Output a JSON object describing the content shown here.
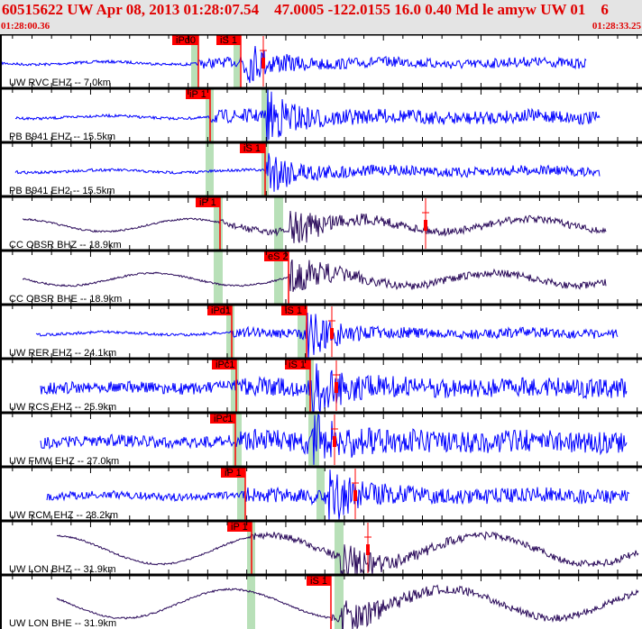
{
  "header": {
    "title": "60515622 UW Apr 08, 2013 01:28:07.54    47.0005 -122.0155 16.0 0.40 Md le amyw UW 01    6",
    "time_start": "01:28:00.36",
    "time_end": "01:28:33.25"
  },
  "colors": {
    "header_text": "#e00000",
    "header_bg": "#e4e4e4",
    "short_period": "#0000ff",
    "broadband": "#2a0a5a",
    "pick": "#ff0000",
    "window": "#b8e0b8"
  },
  "traces": [
    {
      "label": "UW RVC EHZ -- 7.0km",
      "kind": "short_period",
      "picks": [
        "iPd0",
        "iS 1"
      ]
    },
    {
      "label": "PB B941 EHZ -- 15.5km",
      "kind": "short_period",
      "picks": [
        "iP 1"
      ]
    },
    {
      "label": "PB B941 EH2 -- 15.5km",
      "kind": "short_period",
      "picks": [
        "iS 1"
      ]
    },
    {
      "label": "CC OBSR BHZ -- 18.9km",
      "kind": "broadband",
      "picks": [
        "iP 1"
      ]
    },
    {
      "label": "CC OBSR BHE -- 18.9km",
      "kind": "broadband",
      "picks": [
        "eS 2"
      ]
    },
    {
      "label": "UW RER EHZ -- 24.1km",
      "kind": "short_period",
      "picks": [
        "iPd1",
        "iS 1"
      ]
    },
    {
      "label": "UW RCS EHZ -- 25.9km",
      "kind": "short_period",
      "picks": [
        "iPc1",
        "iS 1"
      ]
    },
    {
      "label": "UW FMW EHZ -- 27.0km",
      "kind": "short_period",
      "picks": [
        "iPc1"
      ]
    },
    {
      "label": "UW RCM EHZ -- 28.2km",
      "kind": "short_period",
      "picks": [
        "iP 1"
      ]
    },
    {
      "label": "UW LON BHZ -- 31.9km",
      "kind": "broadband",
      "picks": [
        "iP 1"
      ]
    },
    {
      "label": "UW LON BHE -- 31.9km",
      "kind": "broadband",
      "picks": [
        "iS 1"
      ]
    }
  ]
}
